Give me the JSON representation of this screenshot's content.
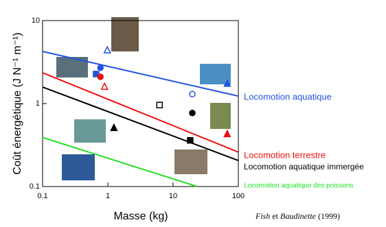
{
  "chart_data": {
    "type": "line",
    "ylabel": "Coût énergétique (J N⁻¹ m⁻¹)",
    "xlabel": "Masse (kg)",
    "citation": [
      "Fish",
      " et ",
      "Baudinette",
      " (1999)"
    ],
    "log_x": true,
    "log_y": true,
    "xlim": [
      0.1,
      100
    ],
    "ylim": [
      0.1,
      10
    ],
    "xticks": [
      0.1,
      1,
      10,
      100
    ],
    "yticks": [
      0.1,
      1,
      10
    ],
    "series": [
      {
        "name": "Locomotion aquatique",
        "color": "#2255dd",
        "x": [
          0.1,
          100
        ],
        "y": [
          4.25,
          1.23
        ]
      },
      {
        "name": "Locomotion terrestre",
        "color": "#ee1111",
        "x": [
          0.1,
          100
        ],
        "y": [
          2.35,
          0.26
        ]
      },
      {
        "name": "Locomotion aquatique immergée",
        "color": "#000000",
        "x": [
          0.1,
          100
        ],
        "y": [
          1.58,
          0.206
        ]
      },
      {
        "name": "Locomotion aquatique des poissons",
        "color": "#22dd22",
        "x": [
          0.1,
          23.5
        ],
        "y": [
          0.39,
          0.1
        ]
      }
    ],
    "points": [
      {
        "x": 0.98,
        "y": 4.4,
        "marker": "triangle",
        "filled": false,
        "color": "#2255dd"
      },
      {
        "x": 0.77,
        "y": 2.7,
        "marker": "circle",
        "filled": true,
        "color": "#2255dd"
      },
      {
        "x": 0.66,
        "y": 2.27,
        "marker": "square",
        "filled": true,
        "color": "#2255dd"
      },
      {
        "x": 0.77,
        "y": 2.1,
        "marker": "circle",
        "filled": true,
        "color": "#ee1111"
      },
      {
        "x": 0.89,
        "y": 1.6,
        "marker": "triangle",
        "filled": false,
        "color": "#ee1111"
      },
      {
        "x": 19.7,
        "y": 1.3,
        "marker": "circle",
        "filled": false,
        "color": "#2255dd"
      },
      {
        "x": 67.6,
        "y": 1.74,
        "marker": "triangle",
        "filled": true,
        "color": "#2255dd"
      },
      {
        "x": 6.2,
        "y": 0.96,
        "marker": "square",
        "filled": false,
        "color": "#000000"
      },
      {
        "x": 19.7,
        "y": 0.77,
        "marker": "circle",
        "filled": true,
        "color": "#000000"
      },
      {
        "x": 1.24,
        "y": 0.51,
        "marker": "triangle",
        "filled": true,
        "color": "#000000"
      },
      {
        "x": 18.3,
        "y": 0.36,
        "marker": "square",
        "filled": true,
        "color": "#000000"
      },
      {
        "x": 67.6,
        "y": 0.43,
        "marker": "triangle",
        "filled": true,
        "color": "#ee1111"
      }
    ]
  }
}
